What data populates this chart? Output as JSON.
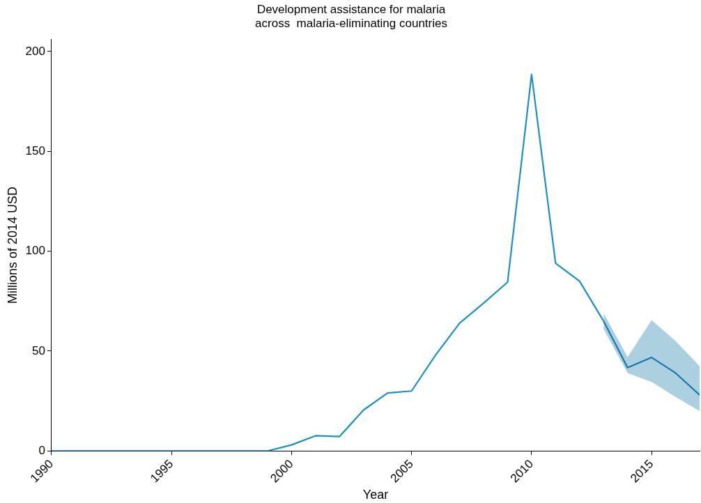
{
  "chart_data": {
    "type": "line",
    "title": "Development assistance for malaria\nacross  malaria-eliminating countries",
    "xlabel": "Year",
    "ylabel": "Millions of 2014 USD",
    "xlim": [
      1990,
      2017
    ],
    "xticks": [
      1990,
      1995,
      2000,
      2005,
      2010,
      2015
    ],
    "ylim": [
      0,
      206
    ],
    "yticks": [
      0,
      50,
      100,
      150,
      200
    ],
    "grid": false,
    "legend": false,
    "marker": "none",
    "line_style": "solid",
    "series": [
      {
        "color": "#1b90c2",
        "x": [
          1990,
          1991,
          1992,
          1993,
          1994,
          1995,
          1996,
          1997,
          1998,
          1999,
          2000,
          2001,
          2002,
          2003,
          2004,
          2005,
          2006,
          2007,
          2008,
          2009,
          2010,
          2011,
          2012,
          2013
        ],
        "values": [
          0,
          0,
          0,
          0,
          0,
          0,
          0,
          0,
          0,
          0,
          3,
          7.6,
          7.2,
          20.5,
          29,
          30,
          48,
          64,
          74,
          84.5,
          188.5,
          94,
          85,
          65
        ]
      },
      {
        "color": "#1479a8",
        "x": [
          2013,
          2014,
          2015,
          2016,
          2017
        ],
        "values": [
          65,
          41.7,
          46.8,
          39,
          28
        ],
        "lower": [
          61,
          39,
          34.5,
          27,
          20
        ],
        "upper": [
          69,
          47,
          65.5,
          55,
          42.5
        ]
      }
    ]
  }
}
